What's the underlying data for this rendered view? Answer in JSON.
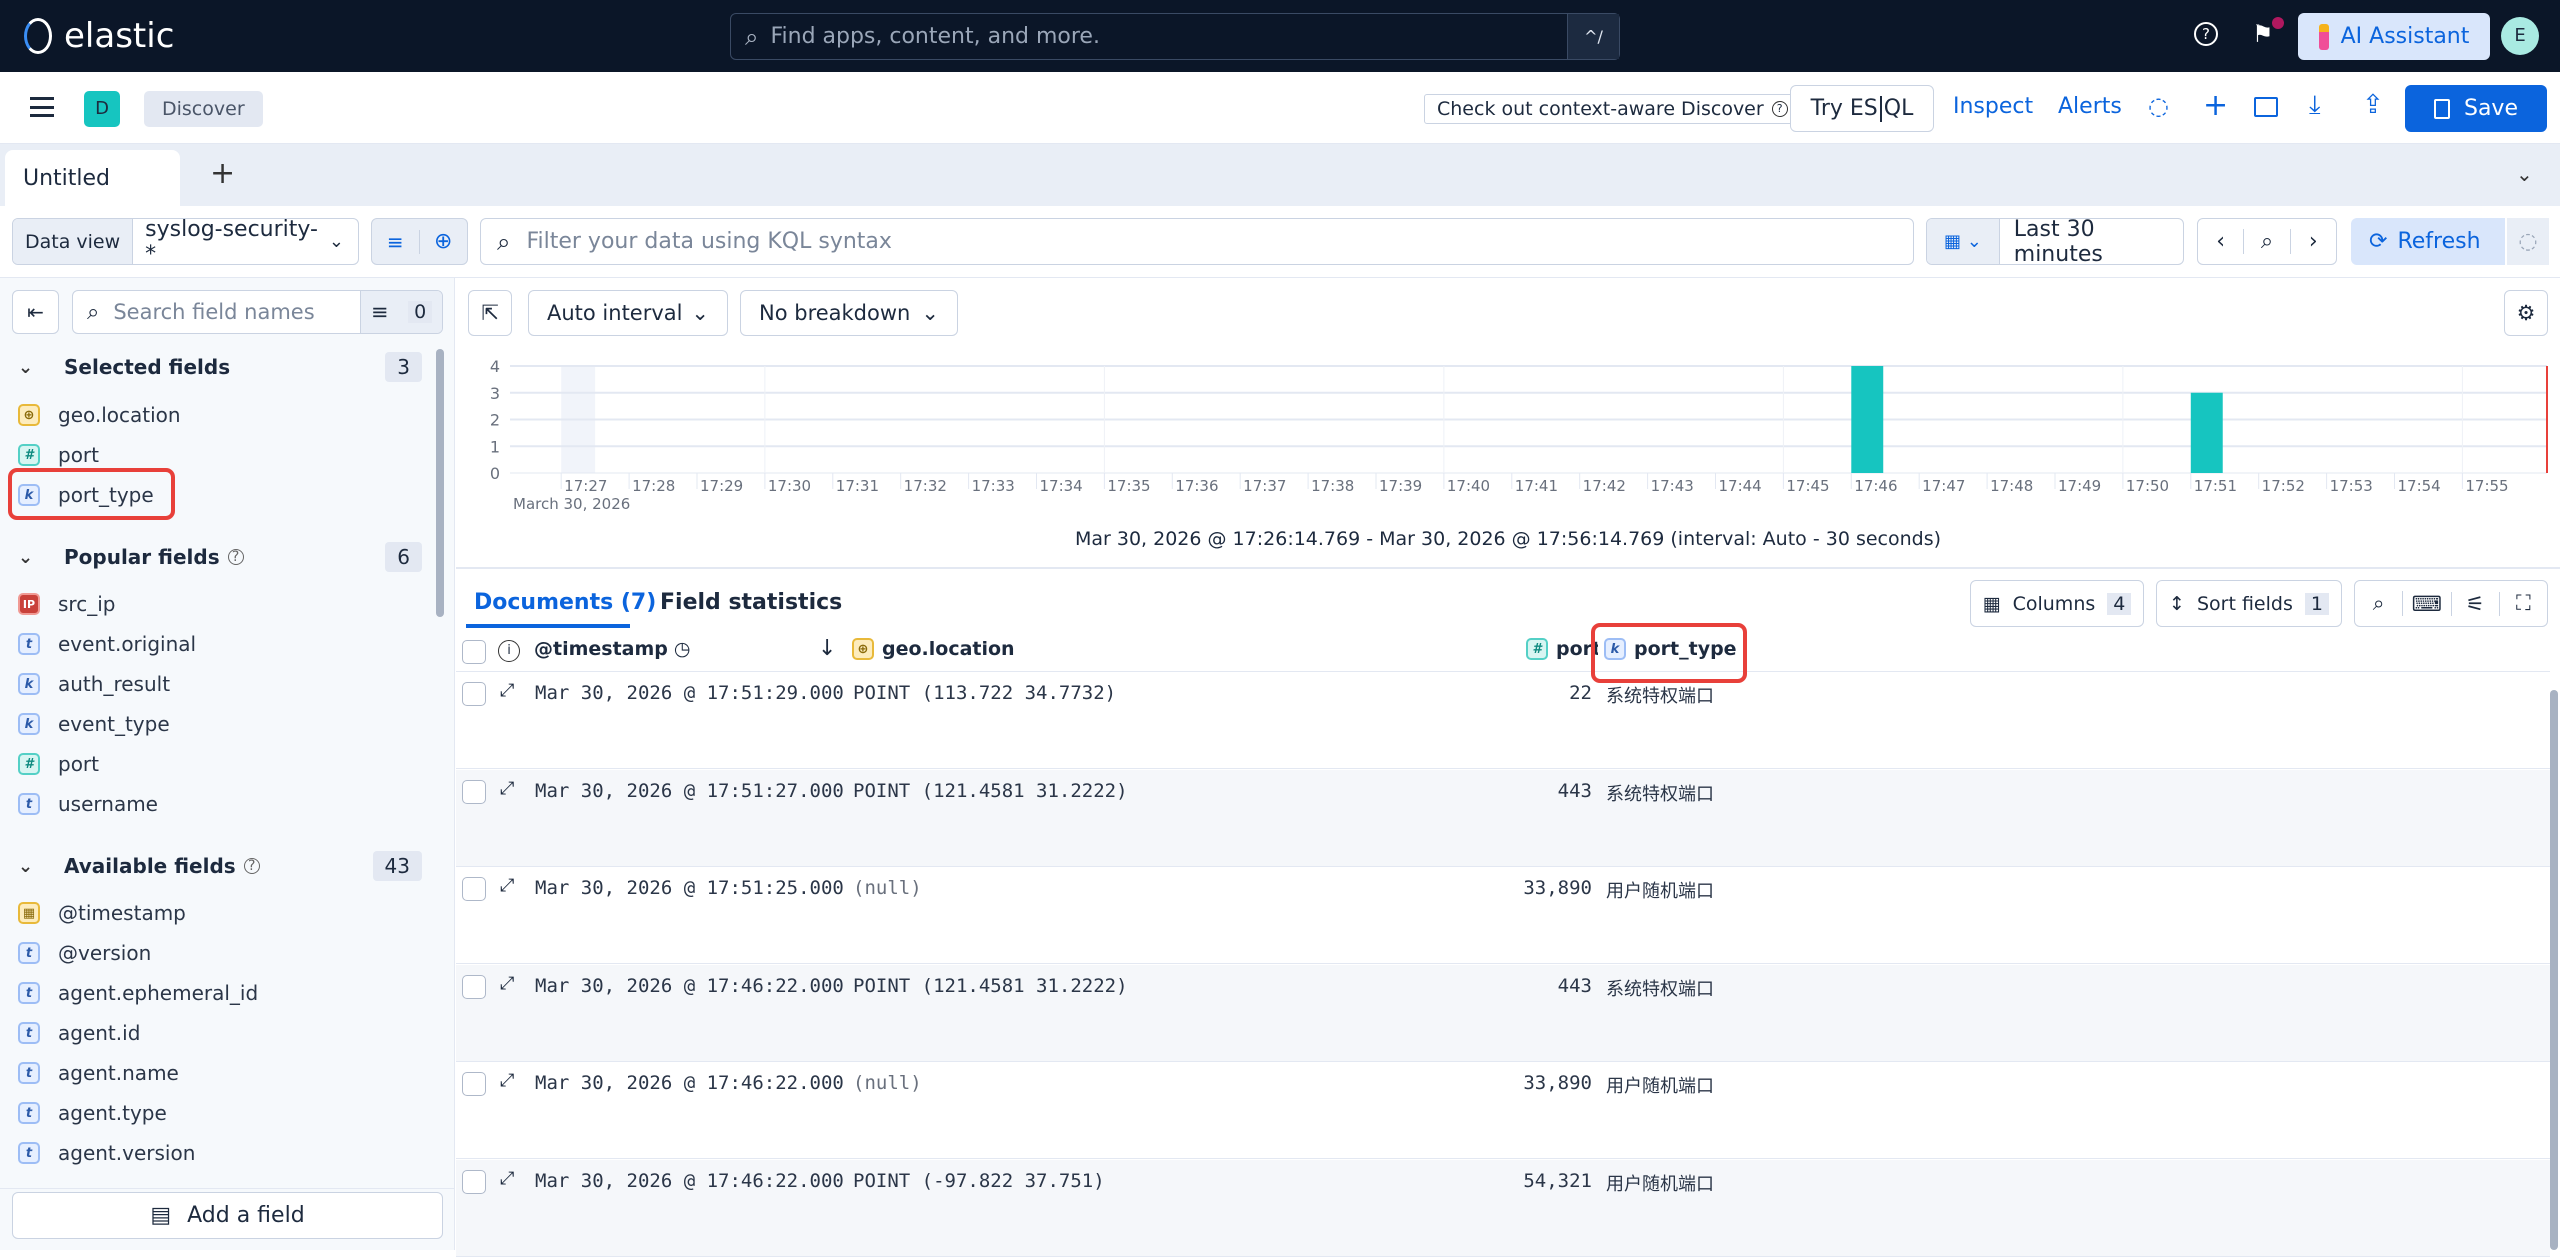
{
  "topbar": {
    "logo": "elastic",
    "search_placeholder": "Find apps, content, and more.",
    "shortcut": "^/",
    "ai_assistant": "AI Assistant",
    "avatar": "E",
    "icons": [
      "help-icon",
      "news-feed-icon"
    ]
  },
  "appbar": {
    "space_badge": "D",
    "breadcrumb": "Discover",
    "context_aware": "Check out context-aware Discover",
    "try_esql_a": "Try ES",
    "try_esql_b": "QL",
    "inspect": "Inspect",
    "alerts": "Alerts",
    "save": "Save",
    "primary_color": "#0b64dd"
  },
  "tabs": {
    "items": [
      {
        "label": "Untitled"
      }
    ]
  },
  "querybar": {
    "data_view_label": "Data view",
    "data_view": "syslog-security-*",
    "kql_placeholder": "Filter your data using KQL syntax",
    "time_range": "Last 30 minutes",
    "refresh": "Refresh"
  },
  "sidebar": {
    "search_placeholder": "Search field names",
    "filter_count": "0",
    "sections": [
      {
        "title": "Selected fields",
        "count": "3",
        "help": false,
        "fields": [
          {
            "name": "geo.location",
            "type": "geo"
          },
          {
            "name": "port",
            "type": "number"
          },
          {
            "name": "port_type",
            "type": "keyword"
          }
        ]
      },
      {
        "title": "Popular fields",
        "count": "6",
        "help": true,
        "fields": [
          {
            "name": "src_ip",
            "type": "ip"
          },
          {
            "name": "event.original",
            "type": "text"
          },
          {
            "name": "auth_result",
            "type": "keyword"
          },
          {
            "name": "event_type",
            "type": "keyword"
          },
          {
            "name": "port",
            "type": "number"
          },
          {
            "name": "username",
            "type": "text"
          }
        ]
      },
      {
        "title": "Available fields",
        "count": "43",
        "help": true,
        "fields": [
          {
            "name": "@timestamp",
            "type": "date"
          },
          {
            "name": "@version",
            "type": "text"
          },
          {
            "name": "agent.ephemeral_id",
            "type": "text"
          },
          {
            "name": "agent.id",
            "type": "text"
          },
          {
            "name": "agent.name",
            "type": "text"
          },
          {
            "name": "agent.type",
            "type": "text"
          },
          {
            "name": "agent.version",
            "type": "text"
          }
        ]
      }
    ],
    "add_field": "Add a field"
  },
  "chart_toolbar": {
    "interval": "Auto interval",
    "breakdown": "No breakdown"
  },
  "chart_data": {
    "type": "bar",
    "x": [
      "17:46:00",
      "17:51:00"
    ],
    "values": [
      4,
      3
    ],
    "ylim": [
      0,
      4
    ],
    "yticks": [
      "0",
      "1",
      "2",
      "3",
      "4"
    ],
    "xticks": [
      "17:27",
      "17:28",
      "17:29",
      "17:30",
      "17:31",
      "17:32",
      "17:33",
      "17:34",
      "17:35",
      "17:36",
      "17:37",
      "17:38",
      "17:39",
      "17:40",
      "17:41",
      "17:42",
      "17:43",
      "17:44",
      "17:45",
      "17:46",
      "17:47",
      "17:48",
      "17:49",
      "17:50",
      "17:51",
      "17:52",
      "17:53",
      "17:54",
      "17:55"
    ],
    "xdate": "March 30, 2026",
    "xrange": [
      "17:26:14.769",
      "17:56:14.769"
    ],
    "bar_color": "#16c5c0",
    "grid": true,
    "caption": "Mar 30, 2026 @ 17:26:14.769 - Mar 30, 2026 @ 17:56:14.769 (interval: Auto - 30 seconds)"
  },
  "results": {
    "tab_documents": "Documents (7)",
    "tab_field_stats": "Field statistics",
    "columns_label": "Columns",
    "columns_count": "4",
    "sort_label": "Sort fields",
    "sort_count": "1",
    "headers": {
      "timestamp": "@timestamp",
      "geo": "geo.location",
      "port": "port",
      "port_type": "port_type"
    },
    "rows": [
      {
        "timestamp": "Mar 30, 2026 @ 17:51:29.000",
        "geo": "POINT (113.722 34.7732)",
        "port": "22",
        "port_type": "系统特权端口"
      },
      {
        "timestamp": "Mar 30, 2026 @ 17:51:27.000",
        "geo": "POINT (121.4581 31.2222)",
        "port": "443",
        "port_type": "系统特权端口"
      },
      {
        "timestamp": "Mar 30, 2026 @ 17:51:25.000",
        "geo": "(null)",
        "port": "33,890",
        "port_type": "用户随机端口"
      },
      {
        "timestamp": "Mar 30, 2026 @ 17:46:22.000",
        "geo": "POINT (121.4581 31.2222)",
        "port": "443",
        "port_type": "系统特权端口"
      },
      {
        "timestamp": "Mar 30, 2026 @ 17:46:22.000",
        "geo": "(null)",
        "port": "33,890",
        "port_type": "用户随机端口"
      },
      {
        "timestamp": "Mar 30, 2026 @ 17:46:22.000",
        "geo": "POINT (-97.822 37.751)",
        "port": "54,321",
        "port_type": "用户随机端口"
      }
    ]
  }
}
